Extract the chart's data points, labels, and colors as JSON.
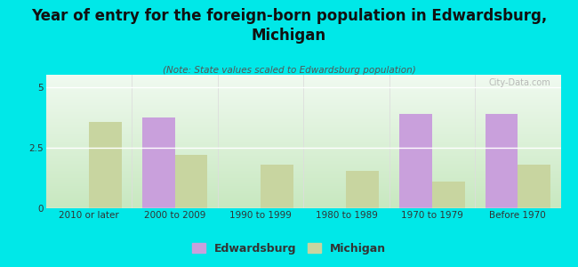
{
  "title": "Year of entry for the foreign-born population in Edwardsburg,\nMichigan",
  "subtitle": "(Note: State values scaled to Edwardsburg population)",
  "categories": [
    "2010 or later",
    "2000 to 2009",
    "1990 to 1999",
    "1980 to 1989",
    "1970 to 1979",
    "Before 1970"
  ],
  "edwardsburg_values": [
    0,
    3.75,
    0,
    0,
    3.9,
    3.9
  ],
  "michigan_values": [
    3.55,
    2.2,
    1.8,
    1.55,
    1.1,
    1.8
  ],
  "edwardsburg_color": "#c9a0dc",
  "michigan_color": "#c8d5a0",
  "outer_bg": "#00e8e8",
  "ylim": [
    0,
    5.5
  ],
  "yticks": [
    0,
    2.5,
    5
  ],
  "bar_width": 0.38,
  "legend_labels": [
    "Edwardsburg",
    "Michigan"
  ],
  "watermark": "City-Data.com",
  "title_fontsize": 12,
  "subtitle_fontsize": 7.5,
  "tick_fontsize": 7.5
}
